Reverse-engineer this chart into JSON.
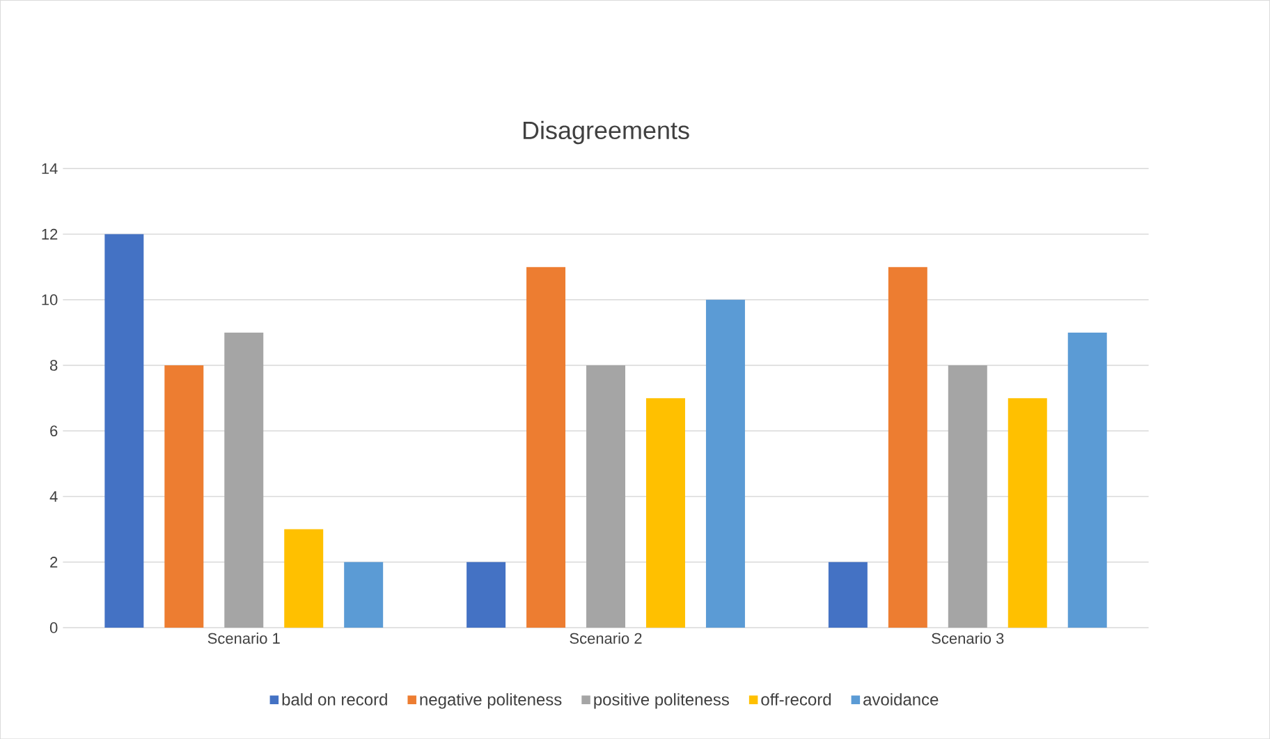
{
  "chart_data": {
    "type": "bar",
    "title": "Disagreements",
    "categories": [
      "Scenario 1",
      "Scenario 2",
      "Scenario 3"
    ],
    "series": [
      {
        "name": "bald on record",
        "color": "#4472c4",
        "values": [
          12,
          2,
          2
        ]
      },
      {
        "name": "negative politeness",
        "color": "#ed7d31",
        "values": [
          8,
          11,
          11
        ]
      },
      {
        "name": "positive politeness",
        "color": "#a5a5a5",
        "values": [
          9,
          8,
          8
        ]
      },
      {
        "name": "off-record",
        "color": "#ffc000",
        "values": [
          3,
          7,
          7
        ]
      },
      {
        "name": "avoidance",
        "color": "#5b9bd5",
        "values": [
          2,
          10,
          9
        ]
      }
    ],
    "ylim": [
      0,
      14
    ],
    "yticks": [
      0,
      2,
      4,
      6,
      8,
      10,
      12,
      14
    ],
    "grid": "y",
    "legend": "bottom"
  }
}
